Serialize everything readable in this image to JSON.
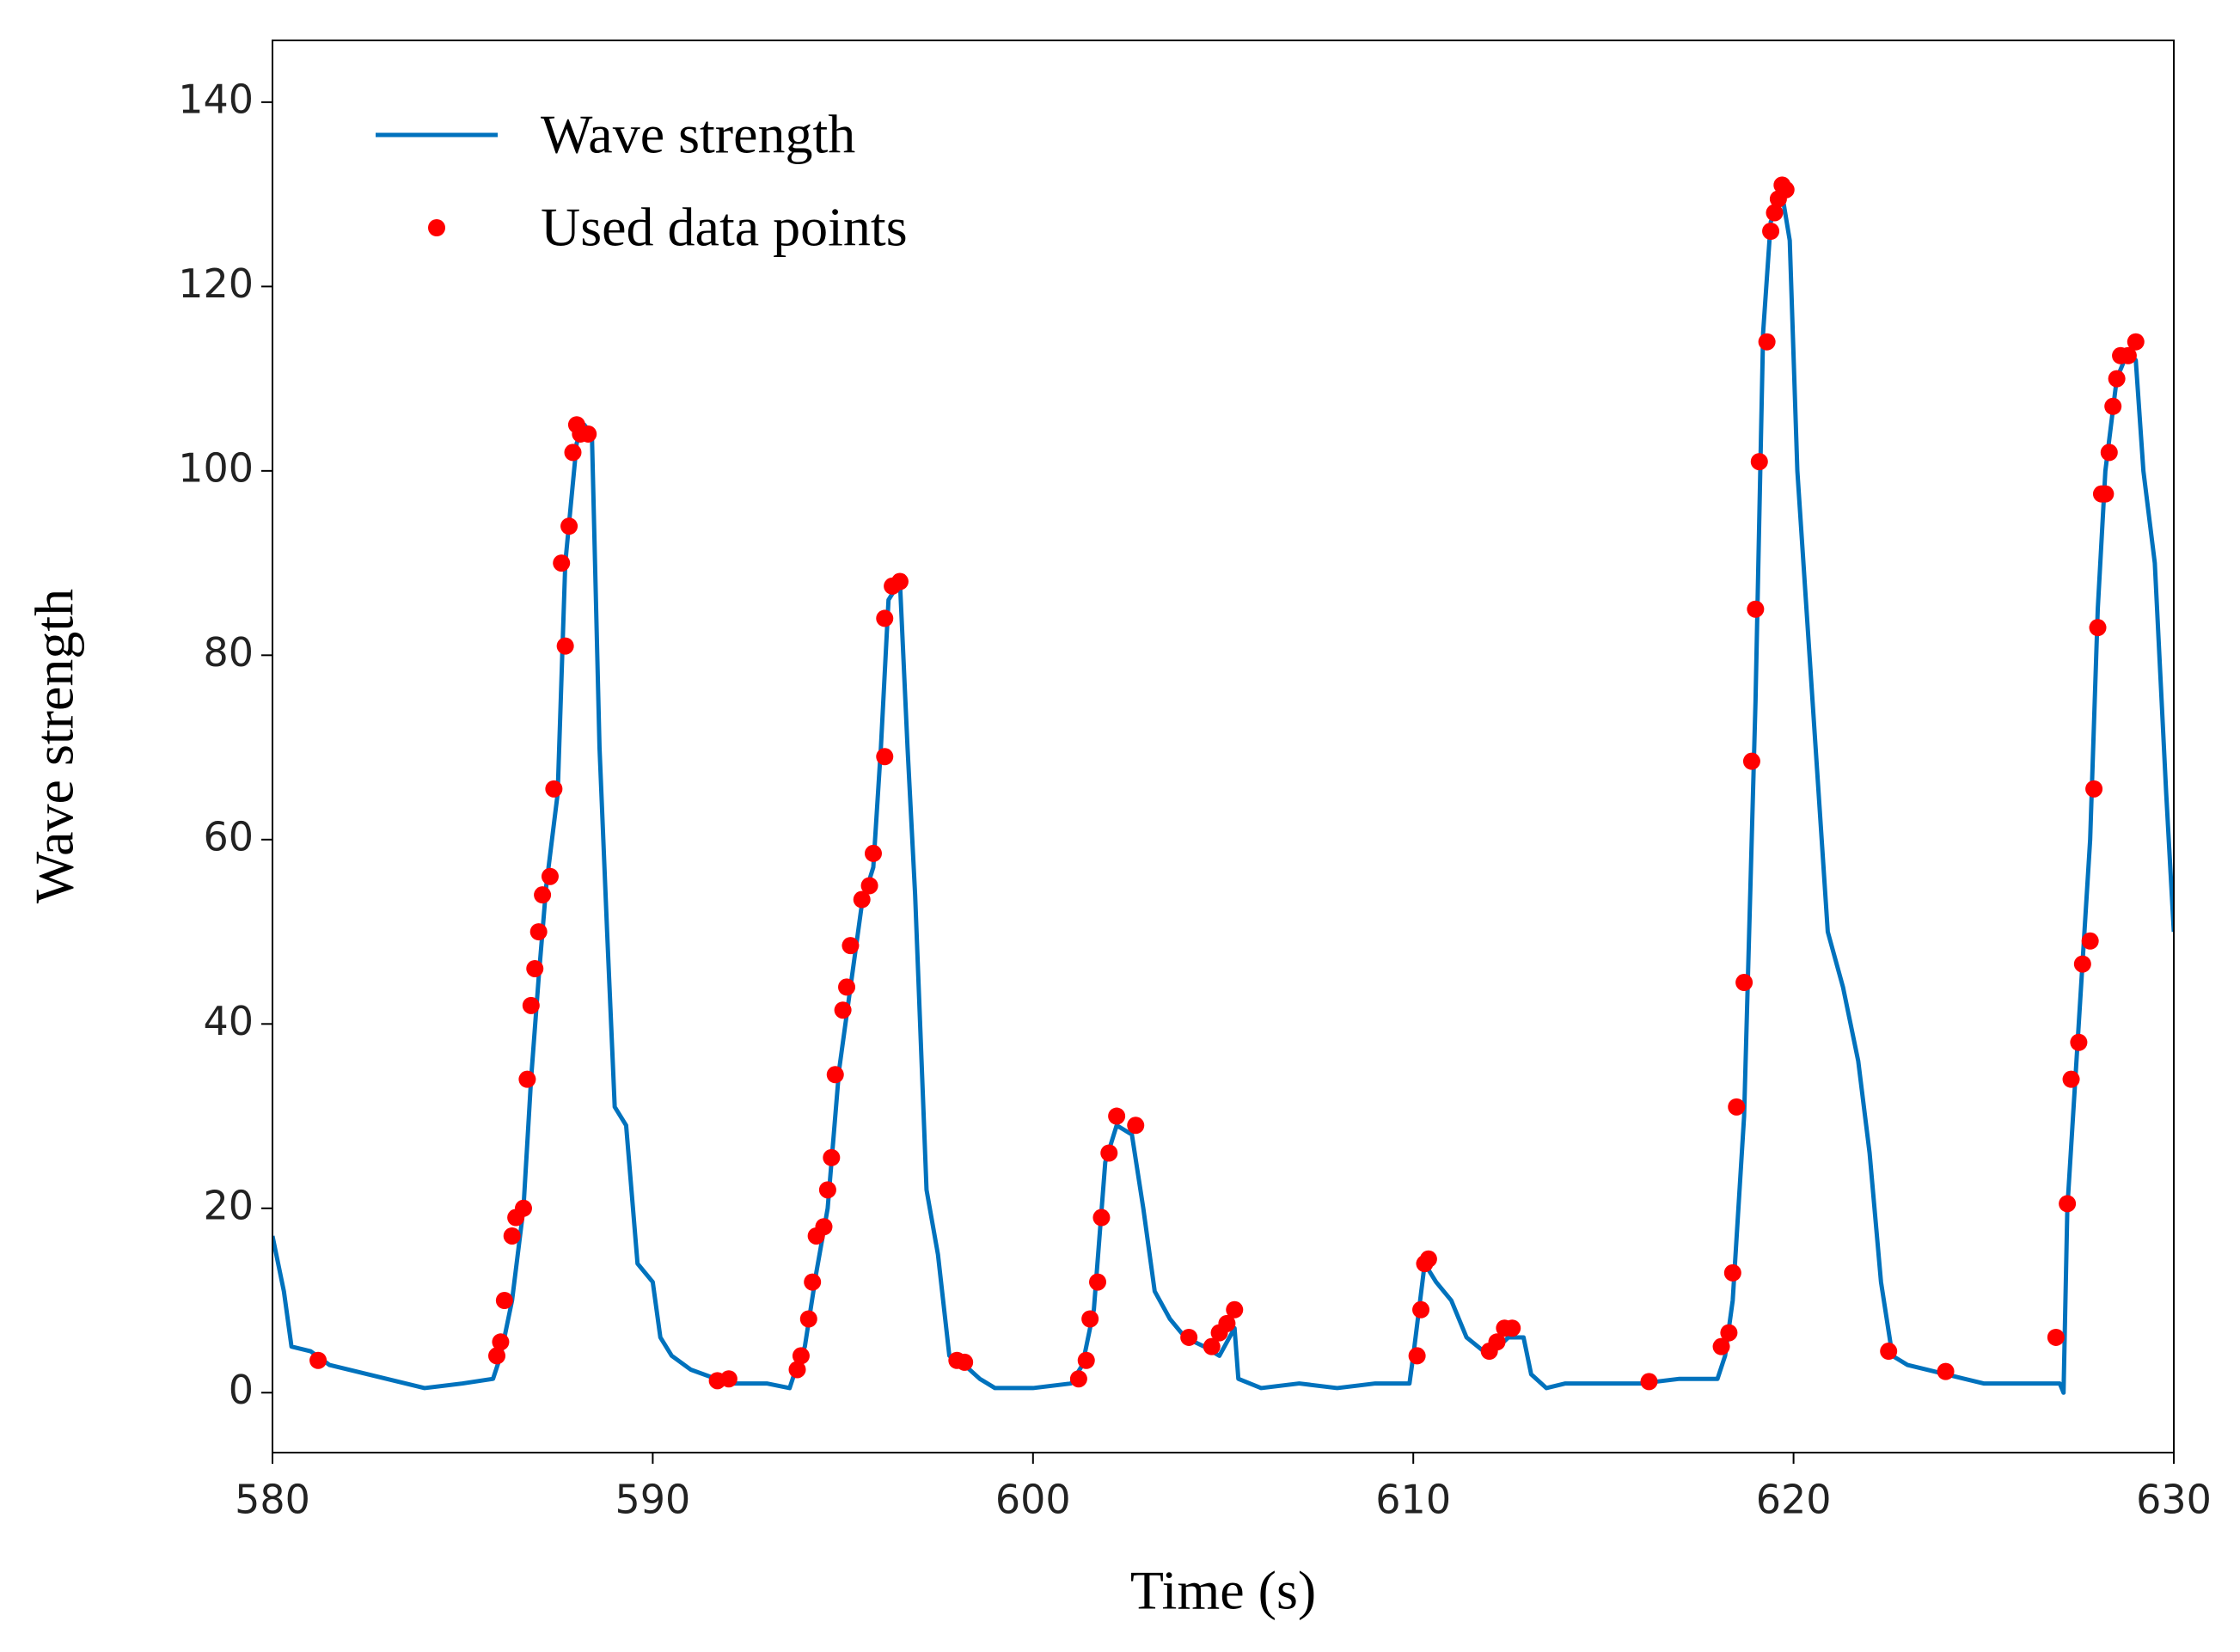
{
  "chart_data": {
    "type": "line",
    "xlabel": "Time (s)",
    "ylabel": "Wave strength",
    "xlim": [
      580,
      630
    ],
    "xticks": [
      580,
      590,
      600,
      610,
      620,
      630
    ],
    "ylim": [
      -6.5,
      146.7
    ],
    "yticks": [
      0,
      20,
      40,
      60,
      80,
      100,
      120,
      140
    ],
    "grid": false,
    "legend": "upper left",
    "series": [
      {
        "name": "Wave strength",
        "color": "#0072bd",
        "marker": "none",
        "linestyle": "solid",
        "x": [
          580,
          580.3,
          580.5,
          581,
          581.5,
          582,
          583,
          584,
          585,
          585.8,
          586,
          586.3,
          586.6,
          586.8,
          587,
          587.2,
          587.5,
          587.7,
          588,
          588.2,
          588.4,
          588.6,
          588.8,
          589,
          589.3,
          589.6,
          590,
          590.2,
          590.5,
          591,
          592,
          593,
          593.6,
          593.8,
          594,
          594.3,
          594.6,
          594.9,
          595.2,
          595.5,
          595.8,
          596,
          596.2,
          596.5,
          596.7,
          596.9,
          597.2,
          597.5,
          597.8,
          598.2,
          598.6,
          599,
          600,
          601,
          601.3,
          601.6,
          601.9,
          602.2,
          602.6,
          602.9,
          603.2,
          603.6,
          604,
          604.5,
          604.9,
          605.3,
          605.4,
          606,
          607,
          608,
          609,
          609.9,
          610,
          610.3,
          610.6,
          611,
          611.4,
          611.7,
          612,
          612.5,
          612.9,
          613.1,
          613.5,
          614,
          615,
          616,
          617,
          618,
          618.2,
          618.4,
          618.7,
          619,
          619.2,
          619.4,
          619.7,
          619.9,
          620.1,
          620.5,
          620.9,
          621.3,
          621.7,
          622,
          622.3,
          622.6,
          623,
          623.5,
          624,
          625,
          626,
          627,
          627.1,
          627.2,
          627.5,
          627.8,
          628,
          628.2,
          628.5,
          628.8,
          629,
          629.2,
          629.5,
          629.8,
          630
        ],
        "values": [
          17,
          11,
          5,
          4.5,
          3,
          2.5,
          1.5,
          0.5,
          1,
          1.5,
          4,
          10,
          20,
          34,
          45,
          55,
          65,
          90,
          103,
          105,
          104,
          70,
          50,
          31,
          29,
          14,
          12,
          6,
          4,
          2.5,
          1,
          1,
          0.5,
          3,
          5,
          13,
          20,
          35,
          44,
          53,
          57,
          70,
          86,
          88,
          70,
          54,
          22,
          15,
          4,
          3,
          1.5,
          0.5,
          0.5,
          1,
          3,
          9,
          25,
          29,
          28,
          20,
          11,
          8,
          6,
          5,
          4,
          7,
          1.5,
          0.5,
          1,
          0.5,
          1,
          1,
          4,
          14,
          12,
          10,
          6,
          5,
          4,
          6,
          6,
          2,
          0.5,
          1,
          1,
          1,
          1.5,
          1.5,
          4,
          10,
          30,
          75,
          115,
          127,
          130,
          125,
          100,
          75,
          50,
          44,
          36,
          26,
          12,
          4,
          3,
          2.5,
          2,
          1,
          1,
          1,
          0,
          20,
          40,
          60,
          85,
          100,
          110,
          113,
          112,
          100,
          90,
          65,
          50
        ]
      },
      {
        "name": "Used data points",
        "color": "#ff0000",
        "marker": "o",
        "linestyle": "none",
        "x": [
          581.2,
          585.9,
          586,
          586.1,
          586.3,
          586.4,
          586.6,
          586.7,
          586.8,
          586.9,
          587,
          587.1,
          587.3,
          587.4,
          587.6,
          587.7,
          587.8,
          587.9,
          588,
          588.1,
          588.3,
          591.7,
          592,
          593.8,
          593.9,
          594.1,
          594.2,
          594.3,
          594.5,
          594.6,
          594.7,
          594.8,
          595,
          595.1,
          595.2,
          595.5,
          595.7,
          595.8,
          596.1,
          596.1,
          596.3,
          596.5,
          598,
          598.2,
          601.2,
          601.4,
          601.5,
          601.7,
          601.8,
          602,
          602.2,
          602.7,
          604.1,
          604.7,
          604.9,
          605.1,
          605.3,
          610.1,
          610.2,
          610.3,
          610.4,
          612,
          612.2,
          612.4,
          612.6,
          616.2,
          618.1,
          618.3,
          618.4,
          618.5,
          618.7,
          618.9,
          619,
          619.1,
          619.3,
          619.4,
          619.5,
          619.6,
          619.7,
          619.8,
          622.5,
          624,
          626.9,
          627.2,
          627.3,
          627.5,
          627.6,
          627.8,
          627.9,
          628,
          628.1,
          628.2,
          628.3,
          628.4,
          628.5,
          628.6,
          628.8,
          629
        ],
        "values": [
          3.5,
          4,
          5.5,
          10,
          17,
          19,
          20,
          34,
          42,
          46,
          50,
          54,
          56,
          65.5,
          90,
          81,
          94,
          102,
          105,
          104,
          104,
          1.3,
          1.5,
          2.5,
          4,
          8,
          12,
          17,
          18,
          22,
          25.5,
          34.5,
          41.5,
          44,
          48.5,
          53.5,
          55,
          58.5,
          69,
          84,
          87.5,
          88,
          3.5,
          3.3,
          1.5,
          3.5,
          8,
          12,
          19,
          26,
          30,
          29,
          6,
          5,
          6.5,
          7.5,
          9,
          4,
          9,
          14,
          14.5,
          4.5,
          5.5,
          7,
          7,
          1.2,
          5,
          6.5,
          13,
          31,
          44.5,
          68.5,
          85,
          101,
          114,
          126,
          128,
          129.5,
          131,
          130.5,
          4.5,
          2.3,
          6,
          20.5,
          34,
          38,
          46.5,
          49,
          65.5,
          83,
          97.5,
          97.5,
          102,
          107,
          110,
          112.5,
          112.5,
          114
        ]
      }
    ]
  }
}
